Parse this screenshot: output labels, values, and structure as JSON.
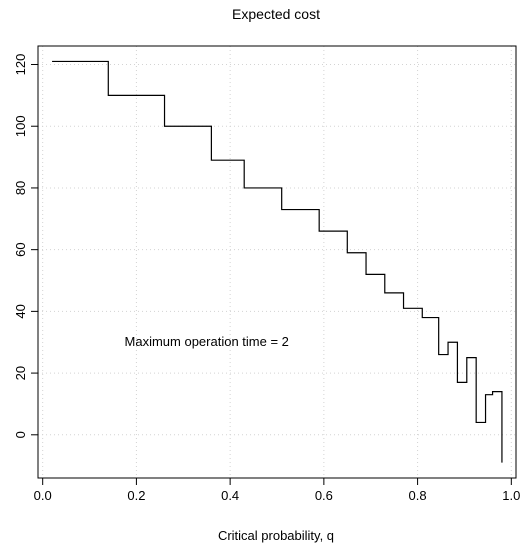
{
  "chart_data": {
    "type": "line",
    "step": true,
    "title": "Expected cost",
    "xlabel": "Critical probability, q",
    "ylabel": "",
    "xlim": [
      -0.01,
      1.01
    ],
    "ylim": [
      -14,
      126
    ],
    "xticks": [
      0.0,
      0.2,
      0.4,
      0.6,
      0.8,
      1.0
    ],
    "xtick_labels": [
      "0.0",
      "0.2",
      "0.4",
      "0.6",
      "0.8",
      "1.0"
    ],
    "yticks": [
      0,
      20,
      40,
      60,
      80,
      100,
      120
    ],
    "ytick_labels": [
      "0",
      "20",
      "40",
      "60",
      "80",
      "100",
      "120"
    ],
    "grid": true,
    "annotation": "Maximum operation time = 2",
    "annotation_position": {
      "x": 0.35,
      "y": 30
    },
    "series": [
      {
        "name": "",
        "x": [
          0.02,
          0.14,
          0.14,
          0.26,
          0.26,
          0.36,
          0.36,
          0.43,
          0.43,
          0.51,
          0.51,
          0.59,
          0.59,
          0.65,
          0.65,
          0.69,
          0.69,
          0.73,
          0.73,
          0.77,
          0.77,
          0.81,
          0.81,
          0.845,
          0.845,
          0.865,
          0.865,
          0.885,
          0.885,
          0.905,
          0.905,
          0.925,
          0.925,
          0.945,
          0.945,
          0.96,
          0.96,
          0.98,
          0.98
        ],
        "y": [
          121,
          121,
          110,
          110,
          100,
          100,
          89,
          89,
          80,
          80,
          73,
          73,
          66,
          66,
          59,
          59,
          52,
          52,
          46,
          46,
          41,
          41,
          38,
          38,
          26,
          26,
          30,
          30,
          17,
          17,
          25,
          25,
          4,
          4,
          13,
          13,
          14,
          14,
          -9
        ]
      }
    ]
  }
}
